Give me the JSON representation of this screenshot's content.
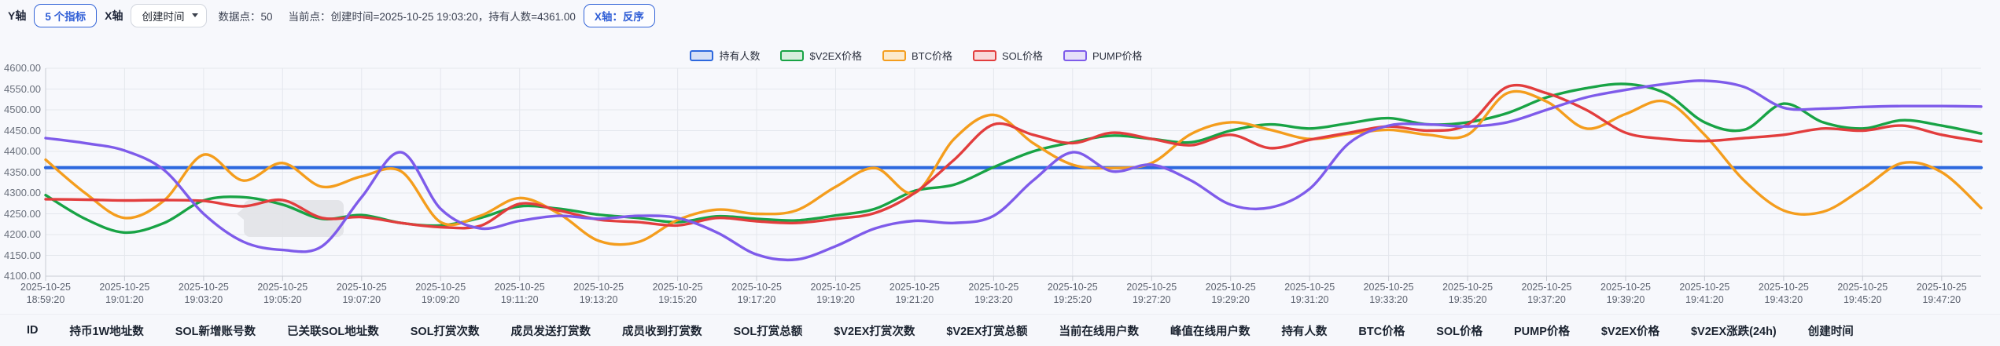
{
  "toolbar": {
    "y_axis_label": "Y轴",
    "indicator_button": "5 个指标",
    "x_axis_label": "X轴",
    "x_axis_select": "创建时间",
    "datapoints_text": "数据点：50",
    "current_point_text": "当前点：创建时间=2025-10-25 19:03:20，持有人数=4361.00",
    "reverse_button": "X轴：反序"
  },
  "legend": {
    "items": [
      {
        "label": "持有人数",
        "color": "#2d68de",
        "fill": "#d6e0f6"
      },
      {
        "label": "$V2EX价格",
        "color": "#18a345",
        "fill": "#d7eedd"
      },
      {
        "label": "BTC价格",
        "color": "#f49d1d",
        "fill": "#fceacc"
      },
      {
        "label": "SOL价格",
        "color": "#e23d3d",
        "fill": "#f9d9d9"
      },
      {
        "label": "PUMP价格",
        "color": "#7e5bea",
        "fill": "#e6dff9"
      }
    ]
  },
  "chart_data": {
    "type": "line",
    "title": "",
    "xlabel": "创建时间",
    "ylabel": "",
    "ylim": [
      4100,
      4600
    ],
    "grid": true,
    "legend_position": "top",
    "x_date": "2025-10-25",
    "x_tick_times": [
      "18:59:20",
      "19:01:20",
      "19:03:20",
      "19:05:20",
      "19:07:20",
      "19:09:20",
      "19:11:20",
      "19:13:20",
      "19:15:20",
      "19:17:20",
      "19:19:20",
      "19:21:20",
      "19:23:20",
      "19:25:20",
      "19:27:20",
      "19:29:20",
      "19:31:20",
      "19:33:20",
      "19:35:20",
      "19:37:20",
      "19:39:20",
      "19:41:20",
      "19:43:20",
      "19:45:20",
      "19:47:20"
    ],
    "y_ticks": [
      "4600.00",
      "4550.00",
      "4500.00",
      "4450.00",
      "4400.00",
      "4350.00",
      "4300.00",
      "4250.00",
      "4200.00",
      "4150.00",
      "4100.00"
    ],
    "series": [
      {
        "name": "持有人数",
        "color": "#2d68de",
        "width": 4.2,
        "values": [
          4361,
          4361,
          4361,
          4361,
          4361,
          4361,
          4361,
          4361,
          4361,
          4361,
          4361,
          4361,
          4361,
          4361,
          4361,
          4361,
          4361,
          4361,
          4361,
          4361,
          4361,
          4361,
          4361,
          4361,
          4361,
          4361,
          4361,
          4361,
          4361,
          4361,
          4361,
          4361,
          4361,
          4361,
          4361,
          4361,
          4361,
          4361,
          4361,
          4361,
          4361,
          4361,
          4361,
          4361,
          4361,
          4361,
          4361,
          4361,
          4361,
          4361
        ]
      },
      {
        "name": "$V2EX价格",
        "color": "#18a345",
        "width": 3.4,
        "values": [
          4295,
          4238,
          4205,
          4228,
          4282,
          4290,
          4272,
          4238,
          4247,
          4228,
          4222,
          4240,
          4268,
          4262,
          4248,
          4240,
          4230,
          4244,
          4238,
          4234,
          4246,
          4262,
          4305,
          4320,
          4362,
          4400,
          4422,
          4438,
          4430,
          4422,
          4450,
          4465,
          4455,
          4468,
          4480,
          4465,
          4470,
          4492,
          4530,
          4552,
          4562,
          4540,
          4470,
          4452,
          4515,
          4470,
          4455,
          4475,
          4462,
          4443
        ]
      },
      {
        "name": "BTC价格",
        "color": "#f49d1d",
        "width": 3.4,
        "values": [
          4380,
          4300,
          4240,
          4282,
          4392,
          4330,
          4372,
          4315,
          4340,
          4352,
          4230,
          4245,
          4288,
          4250,
          4185,
          4182,
          4235,
          4260,
          4250,
          4258,
          4315,
          4360,
          4300,
          4430,
          4488,
          4420,
          4368,
          4360,
          4372,
          4442,
          4470,
          4452,
          4430,
          4442,
          4452,
          4440,
          4440,
          4540,
          4520,
          4455,
          4490,
          4520,
          4440,
          4330,
          4258,
          4255,
          4310,
          4372,
          4350,
          4264
        ]
      },
      {
        "name": "SOL价格",
        "color": "#e23d3d",
        "width": 3.4,
        "values": [
          4285,
          4284,
          4282,
          4283,
          4281,
          4268,
          4283,
          4240,
          4242,
          4228,
          4218,
          4221,
          4274,
          4258,
          4236,
          4230,
          4222,
          4240,
          4232,
          4228,
          4238,
          4252,
          4300,
          4380,
          4465,
          4440,
          4420,
          4445,
          4430,
          4415,
          4440,
          4408,
          4428,
          4445,
          4460,
          4450,
          4465,
          4555,
          4540,
          4500,
          4445,
          4430,
          4425,
          4432,
          4440,
          4455,
          4450,
          4462,
          4440,
          4424
        ]
      },
      {
        "name": "PUMP价格",
        "color": "#7e5bea",
        "width": 3.4,
        "values": [
          4432,
          4420,
          4402,
          4355,
          4250,
          4183,
          4163,
          4172,
          4290,
          4398,
          4262,
          4215,
          4233,
          4245,
          4238,
          4245,
          4240,
          4205,
          4152,
          4140,
          4172,
          4215,
          4233,
          4228,
          4245,
          4330,
          4398,
          4352,
          4368,
          4330,
          4272,
          4265,
          4310,
          4420,
          4462,
          4465,
          4460,
          4470,
          4500,
          4530,
          4548,
          4562,
          4570,
          4555,
          4505,
          4503,
          4507,
          4509,
          4509,
          4508
        ]
      }
    ]
  },
  "table_headers": [
    "ID",
    "持币1W地址数",
    "SOL新增账号数",
    "已关联SOL地址数",
    "SOL打赏次数",
    "成员发送打赏数",
    "成员收到打赏数",
    "SOL打赏总额",
    "$V2EX打赏次数",
    "$V2EX打赏总额",
    "当前在线用户数",
    "峰值在线用户数",
    "持有人数",
    "BTC价格",
    "SOL价格",
    "PUMP价格",
    "$V2EX价格",
    "$V2EX涨跌(24h)",
    "创建时间"
  ],
  "colors": {
    "background": "#f7f8fc",
    "gridline": "#e4e7ed",
    "axis": "#c9ccd4",
    "tooltip_box": "#e1e2e7",
    "accent_blue": "#2f5ed6"
  }
}
